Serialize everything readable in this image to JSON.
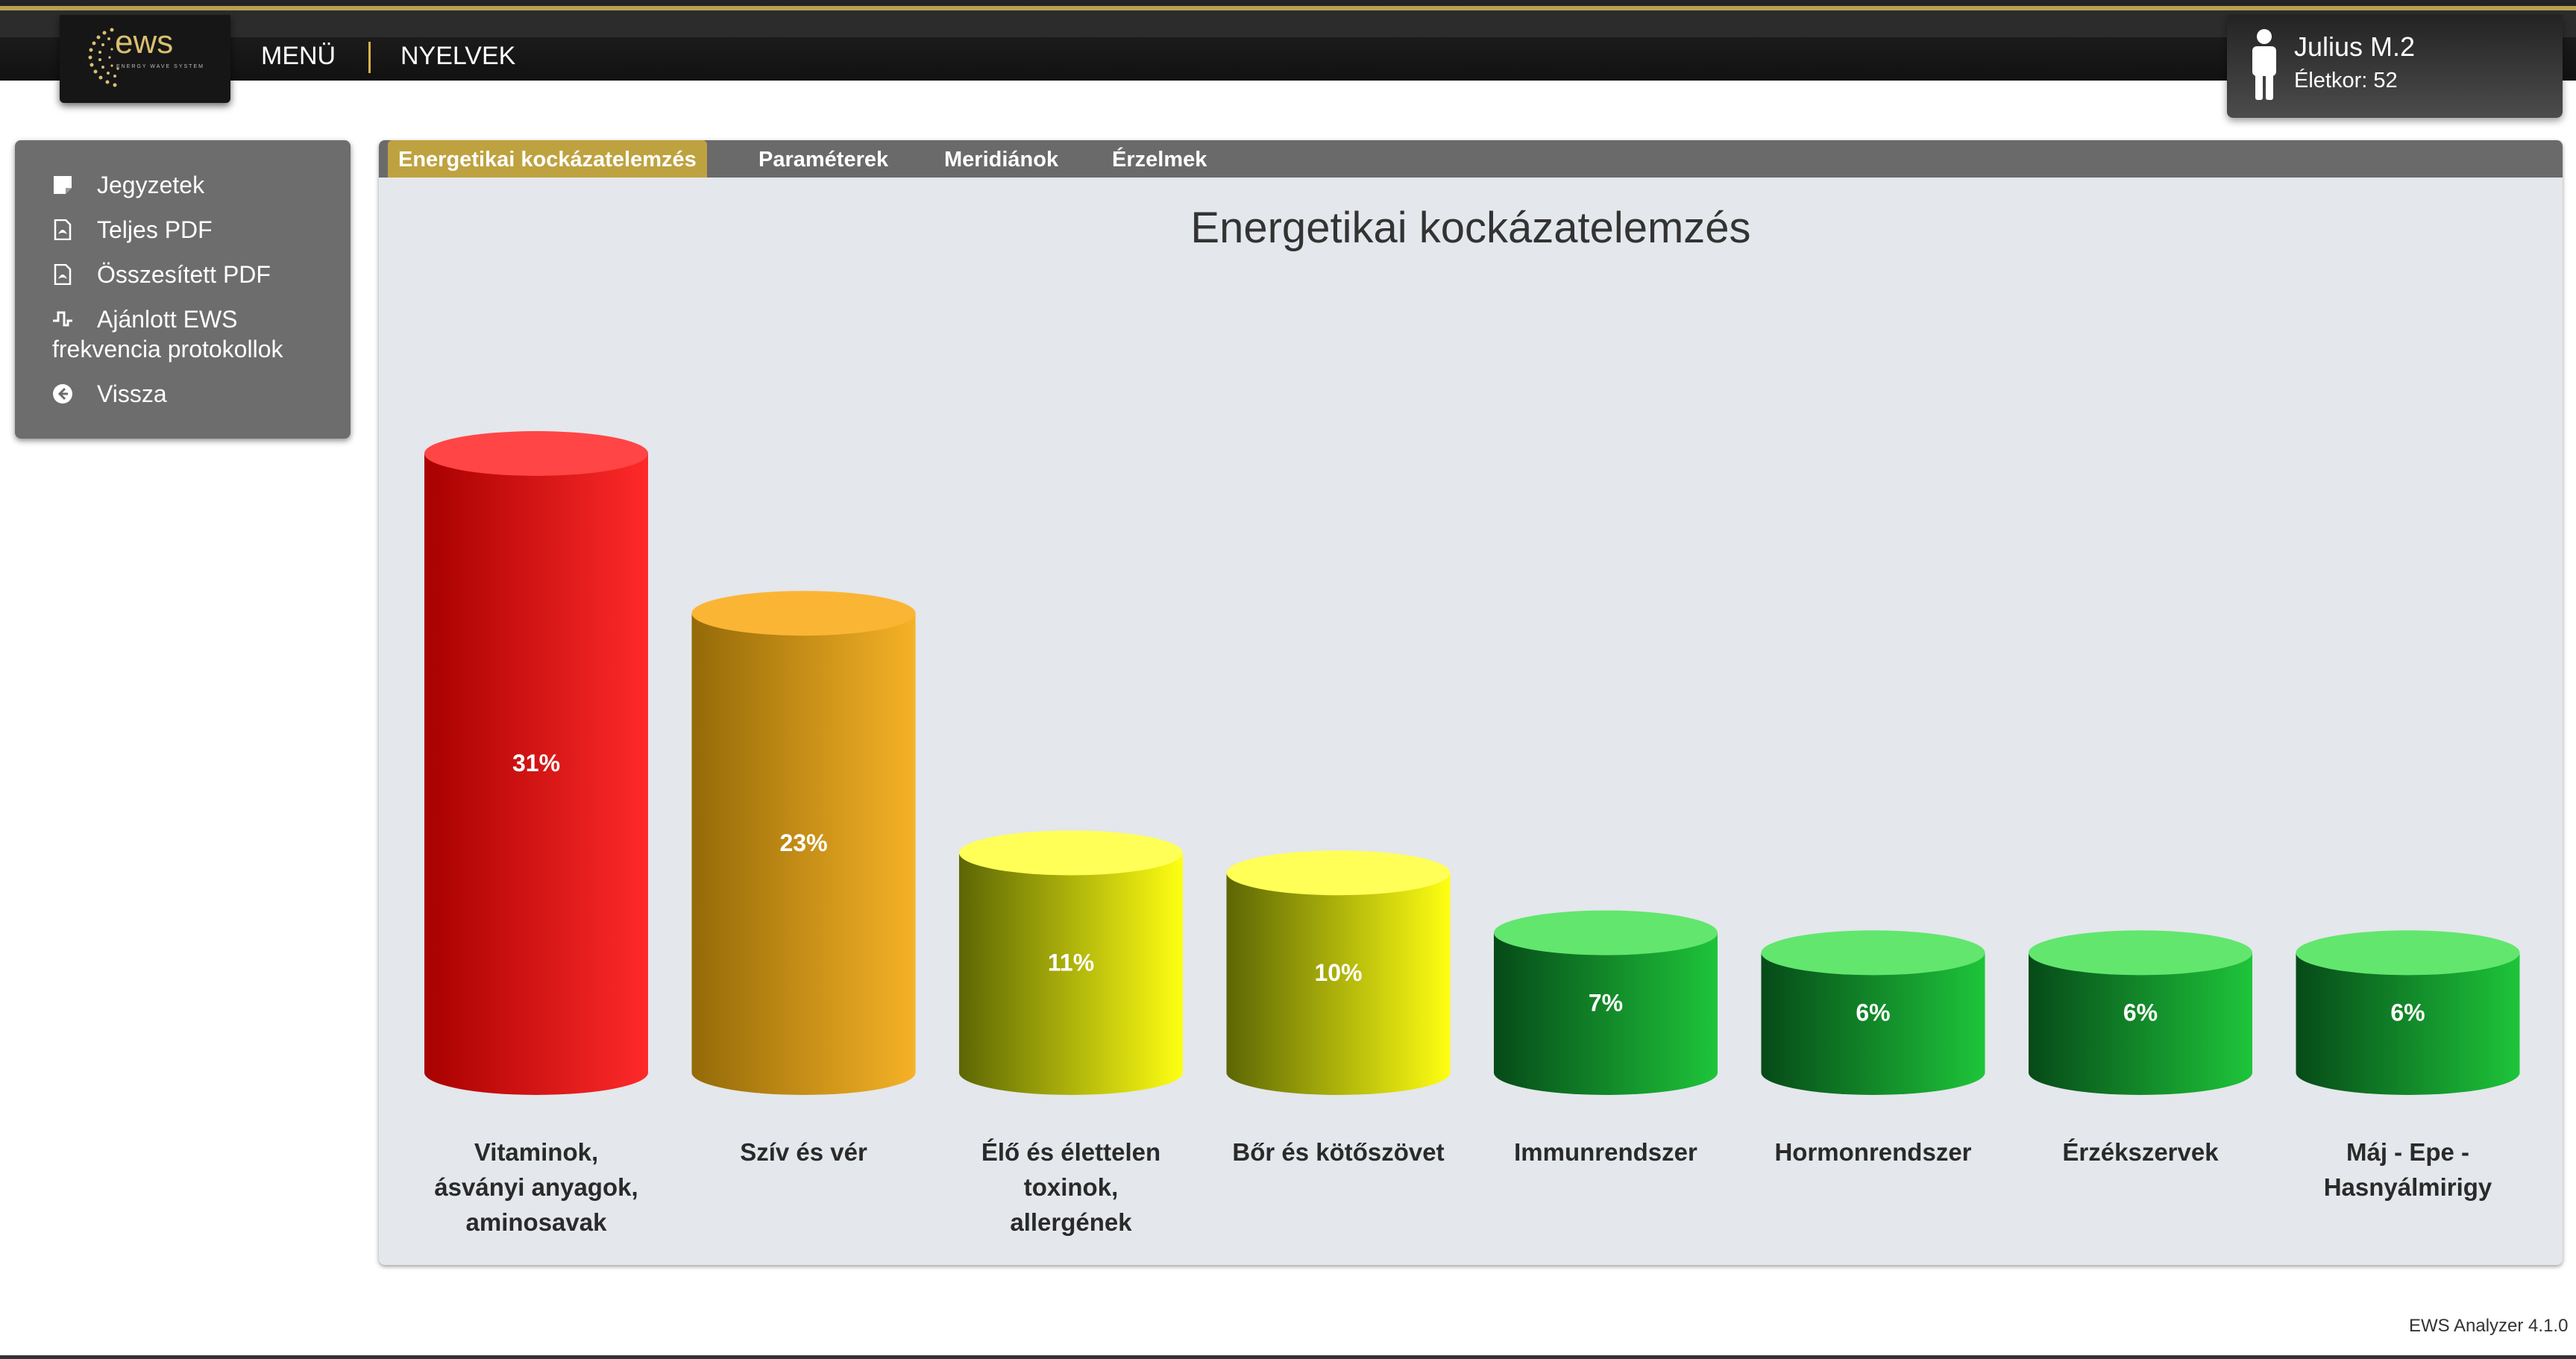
{
  "header": {
    "logo_text": "ews",
    "logo_tagline": "ENERGY WAVE SYSTEM",
    "menu_label": "MENÜ",
    "languages_label": "NYELVEK",
    "user_name": "Julius M.2",
    "user_age": "Életkor: 52"
  },
  "sidebar": {
    "items": [
      {
        "label": "Jegyzetek",
        "icon": "note-icon"
      },
      {
        "label": "Teljes PDF",
        "icon": "pdf-icon"
      },
      {
        "label": "Összesített PDF",
        "icon": "pdf-summary-icon"
      },
      {
        "label": "Ajánlott EWS",
        "label2": "frekvencia protokollok",
        "icon": "frequency-icon"
      },
      {
        "label": "Vissza",
        "icon": "back-arrow-icon"
      }
    ]
  },
  "tabs": [
    {
      "label": "Energetikai kockázatelemzés",
      "active": true
    },
    {
      "label": "Paraméterek",
      "active": false
    },
    {
      "label": "Meridiánok",
      "active": false
    },
    {
      "label": "Érzelmek",
      "active": false
    }
  ],
  "chart_data": {
    "type": "bar",
    "title": "Energetikai kockázatelemzés",
    "categories": [
      [
        "Vitaminok,",
        "ásványi anyagok,",
        "aminosavak"
      ],
      [
        "Szív és vér"
      ],
      [
        "Élő és élettelen",
        "toxinok,",
        "allergének"
      ],
      [
        "Bőr és kötőszövet"
      ],
      [
        "Immunrendszer"
      ],
      [
        "Hormonrendszer"
      ],
      [
        "Érzékszervek"
      ],
      [
        "Máj - Epe -",
        "Hasnyálmirigy"
      ]
    ],
    "values": [
      31,
      23,
      11,
      10,
      7,
      6,
      6,
      6
    ],
    "value_labels": [
      "31%",
      "23%",
      "11%",
      "10%",
      "7%",
      "6%",
      "6%",
      "6%"
    ],
    "ylim": [
      0,
      31
    ],
    "colors": {
      "red": {
        "dark": "#a80000",
        "light": "#ff2a2a",
        "top": "#ff4545"
      },
      "orange": {
        "dark": "#946a08",
        "light": "#f6b227",
        "top": "#fbb534"
      },
      "yellow": {
        "dark": "#5c6604",
        "light": "#ffff12",
        "top": "#ffff58"
      },
      "green": {
        "dark": "#064a18",
        "light": "#1ec53a",
        "top": "#62e66e"
      }
    },
    "bar_colors": [
      "red",
      "orange",
      "yellow",
      "yellow",
      "green",
      "green",
      "green",
      "green"
    ]
  },
  "footer": {
    "version": "EWS Analyzer 4.1.0"
  }
}
